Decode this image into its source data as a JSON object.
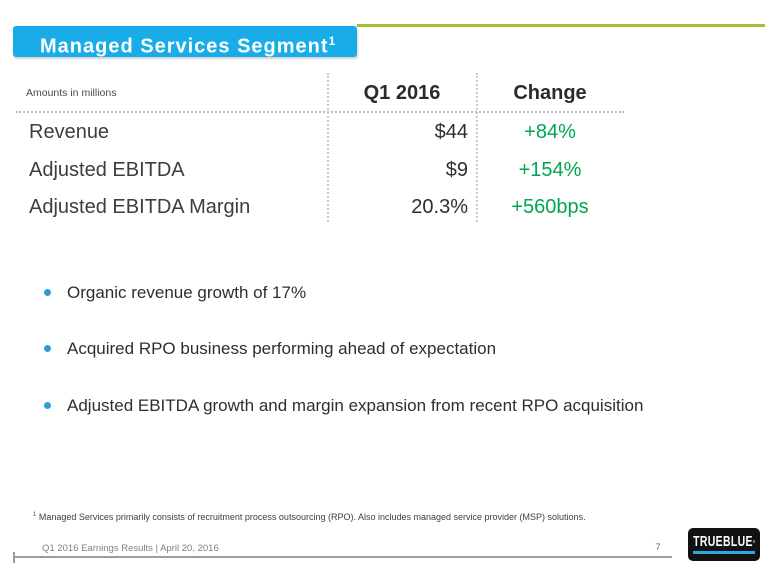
{
  "slide": {
    "title": {
      "text": "Managed Services Segment",
      "superscript": "1"
    },
    "table": {
      "note": "Amounts in millions",
      "col_q1": "Q1 2016",
      "col_change": "Change",
      "rows": [
        {
          "label": "Revenue",
          "q1": "$44",
          "change": "+84%"
        },
        {
          "label": "Adjusted EBITDA",
          "q1": "$9",
          "change": "+154%"
        },
        {
          "label": "Adjusted EBITDA Margin",
          "q1": "20.3%",
          "change": "+560bps"
        }
      ]
    },
    "bullets": [
      "Organic revenue growth of 17%",
      "Acquired RPO business performing ahead of expectation",
      "Adjusted EBITDA growth and margin expansion from recent RPO acquisition"
    ],
    "footnote": {
      "superscript": "1",
      "text": " Managed Services primarily consists of recruitment process outsourcing (RPO). Also includes managed service provider (MSP) solutions."
    },
    "footer": {
      "left": "Q1 2016 Earnings Results | April 20, 2016",
      "page": "7"
    },
    "logo": {
      "text": "TRUEBLUE",
      "mark": "®"
    },
    "colors": {
      "title_bg": "#18ACE8",
      "accent_line": "#A9BC33",
      "positive_green": "#00A650",
      "bullet_blue": "#2E9BDA",
      "logo_bg": "#121212",
      "logo_stripe": "#29ABE2"
    }
  }
}
